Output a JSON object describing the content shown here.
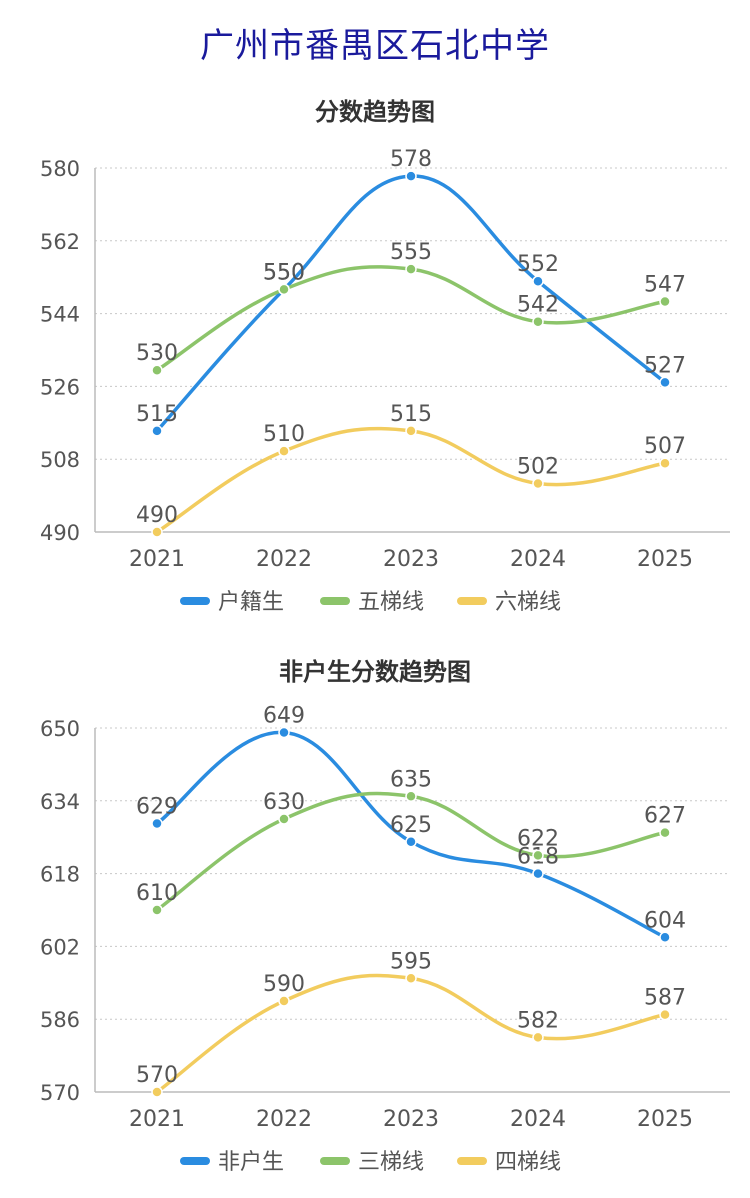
{
  "page": {
    "title": "广州市番禺区石北中学"
  },
  "chart_data": [
    {
      "type": "line",
      "title": "分数趋势图",
      "categories": [
        "2021",
        "2022",
        "2023",
        "2024",
        "2025"
      ],
      "ylim": [
        490,
        580
      ],
      "yticks": [
        490,
        508,
        526,
        544,
        562,
        580
      ],
      "grid": true,
      "legend_position": "bottom",
      "series": [
        {
          "name": "户籍生",
          "color": "#2a8ce0",
          "values": [
            515,
            550,
            578,
            552,
            527
          ]
        },
        {
          "name": "五梯线",
          "color": "#8cc46a",
          "values": [
            530,
            550,
            555,
            542,
            547
          ]
        },
        {
          "name": "六梯线",
          "color": "#f2cc5e",
          "values": [
            490,
            510,
            515,
            502,
            507
          ]
        }
      ]
    },
    {
      "type": "line",
      "title": "非户生分数趋势图",
      "categories": [
        "2021",
        "2022",
        "2023",
        "2024",
        "2025"
      ],
      "ylim": [
        570,
        650
      ],
      "yticks": [
        570,
        586,
        602,
        618,
        634,
        650
      ],
      "grid": true,
      "legend_position": "bottom",
      "series": [
        {
          "name": "非户生",
          "color": "#2a8ce0",
          "values": [
            629,
            649,
            625,
            618,
            604
          ]
        },
        {
          "name": "三梯线",
          "color": "#8cc46a",
          "values": [
            610,
            630,
            635,
            622,
            627
          ]
        },
        {
          "name": "四梯线",
          "color": "#f2cc5e",
          "values": [
            570,
            590,
            595,
            582,
            587
          ]
        }
      ]
    }
  ]
}
